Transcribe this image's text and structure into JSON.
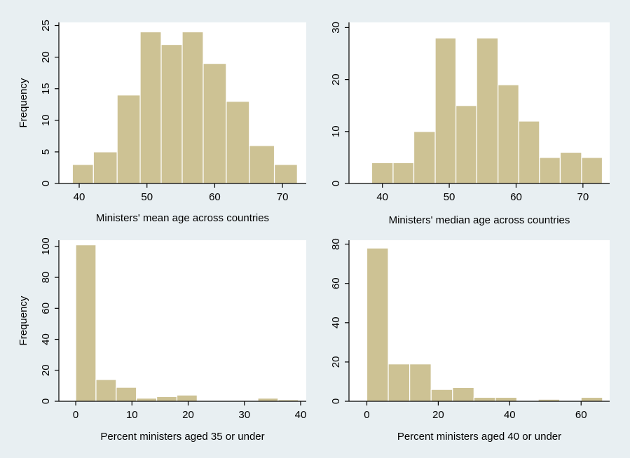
{
  "style": {
    "figure_background": "#e8eff2",
    "plot_background": "#ffffff",
    "bar_fill": "#cdc294",
    "bar_edge": "#ffffff"
  },
  "chart_data": [
    {
      "type": "bar",
      "xlabel": "Ministers' mean age across countries",
      "ylabel": "Frequency",
      "xlim": [
        37,
        73.5
      ],
      "ylim": [
        0,
        25.5
      ],
      "xticks": [
        40,
        50,
        60,
        70
      ],
      "yticks": [
        0,
        5,
        10,
        15,
        20,
        25
      ],
      "bins": [
        {
          "start": 39.0,
          "end": 42.1,
          "value": 3
        },
        {
          "start": 42.1,
          "end": 45.6,
          "value": 5
        },
        {
          "start": 45.6,
          "end": 49.0,
          "value": 14
        },
        {
          "start": 49.0,
          "end": 52.1,
          "value": 24
        },
        {
          "start": 52.1,
          "end": 55.2,
          "value": 22
        },
        {
          "start": 55.2,
          "end": 58.3,
          "value": 24
        },
        {
          "start": 58.3,
          "end": 61.7,
          "value": 19
        },
        {
          "start": 61.7,
          "end": 65.1,
          "value": 13
        },
        {
          "start": 65.1,
          "end": 68.8,
          "value": 6
        },
        {
          "start": 68.8,
          "end": 72.2,
          "value": 3
        },
        {
          "start": 72.2,
          "end": 72.3,
          "value": 3
        }
      ]
    },
    {
      "type": "bar",
      "xlabel": "Ministers' median age across countries",
      "ylabel": "",
      "xlim": [
        35,
        74
      ],
      "ylim": [
        0,
        31
      ],
      "xticks": [
        40,
        50,
        60,
        70
      ],
      "yticks": [
        0,
        10,
        20,
        30
      ],
      "bins": [
        {
          "start": 38.4,
          "end": 41.6,
          "value": 4
        },
        {
          "start": 41.6,
          "end": 44.7,
          "value": 4
        },
        {
          "start": 44.7,
          "end": 47.9,
          "value": 10
        },
        {
          "start": 47.9,
          "end": 51.0,
          "value": 28
        },
        {
          "start": 51.0,
          "end": 54.1,
          "value": 15
        },
        {
          "start": 54.1,
          "end": 57.3,
          "value": 28
        },
        {
          "start": 57.3,
          "end": 60.4,
          "value": 19
        },
        {
          "start": 60.4,
          "end": 63.5,
          "value": 12
        },
        {
          "start": 63.5,
          "end": 66.6,
          "value": 5
        },
        {
          "start": 66.6,
          "end": 69.8,
          "value": 6
        },
        {
          "start": 69.8,
          "end": 72.9,
          "value": 5
        }
      ]
    },
    {
      "type": "bar",
      "xlabel": "Percent ministers aged 35 or under",
      "ylabel": "Frequency",
      "xlim": [
        -3,
        41
      ],
      "ylim": [
        0,
        104
      ],
      "xticks": [
        0,
        10,
        20,
        30,
        40
      ],
      "yticks": [
        0,
        20,
        40,
        60,
        80,
        100
      ],
      "bins": [
        {
          "start": 0.0,
          "end": 3.6,
          "value": 101
        },
        {
          "start": 3.6,
          "end": 7.2,
          "value": 14
        },
        {
          "start": 7.2,
          "end": 10.8,
          "value": 9
        },
        {
          "start": 10.8,
          "end": 14.4,
          "value": 2
        },
        {
          "start": 14.4,
          "end": 18.0,
          "value": 3
        },
        {
          "start": 18.0,
          "end": 21.6,
          "value": 4
        },
        {
          "start": 32.4,
          "end": 36.0,
          "value": 2
        },
        {
          "start": 36.0,
          "end": 39.6,
          "value": 1
        }
      ]
    },
    {
      "type": "bar",
      "xlabel": "Percent ministers aged 40 or under",
      "ylabel": "",
      "xlim": [
        -5,
        68
      ],
      "ylim": [
        0,
        82
      ],
      "xticks": [
        0,
        20,
        40,
        60
      ],
      "yticks": [
        0,
        20,
        40,
        60,
        80
      ],
      "bins": [
        {
          "start": 0.0,
          "end": 6.0,
          "value": 78
        },
        {
          "start": 6.0,
          "end": 12.0,
          "value": 19
        },
        {
          "start": 12.0,
          "end": 18.0,
          "value": 19
        },
        {
          "start": 18.0,
          "end": 24.0,
          "value": 6
        },
        {
          "start": 24.0,
          "end": 30.0,
          "value": 7
        },
        {
          "start": 30.0,
          "end": 36.0,
          "value": 2
        },
        {
          "start": 36.0,
          "end": 42.0,
          "value": 2
        },
        {
          "start": 48.0,
          "end": 54.0,
          "value": 1
        },
        {
          "start": 60.0,
          "end": 66.0,
          "value": 2
        }
      ]
    }
  ]
}
